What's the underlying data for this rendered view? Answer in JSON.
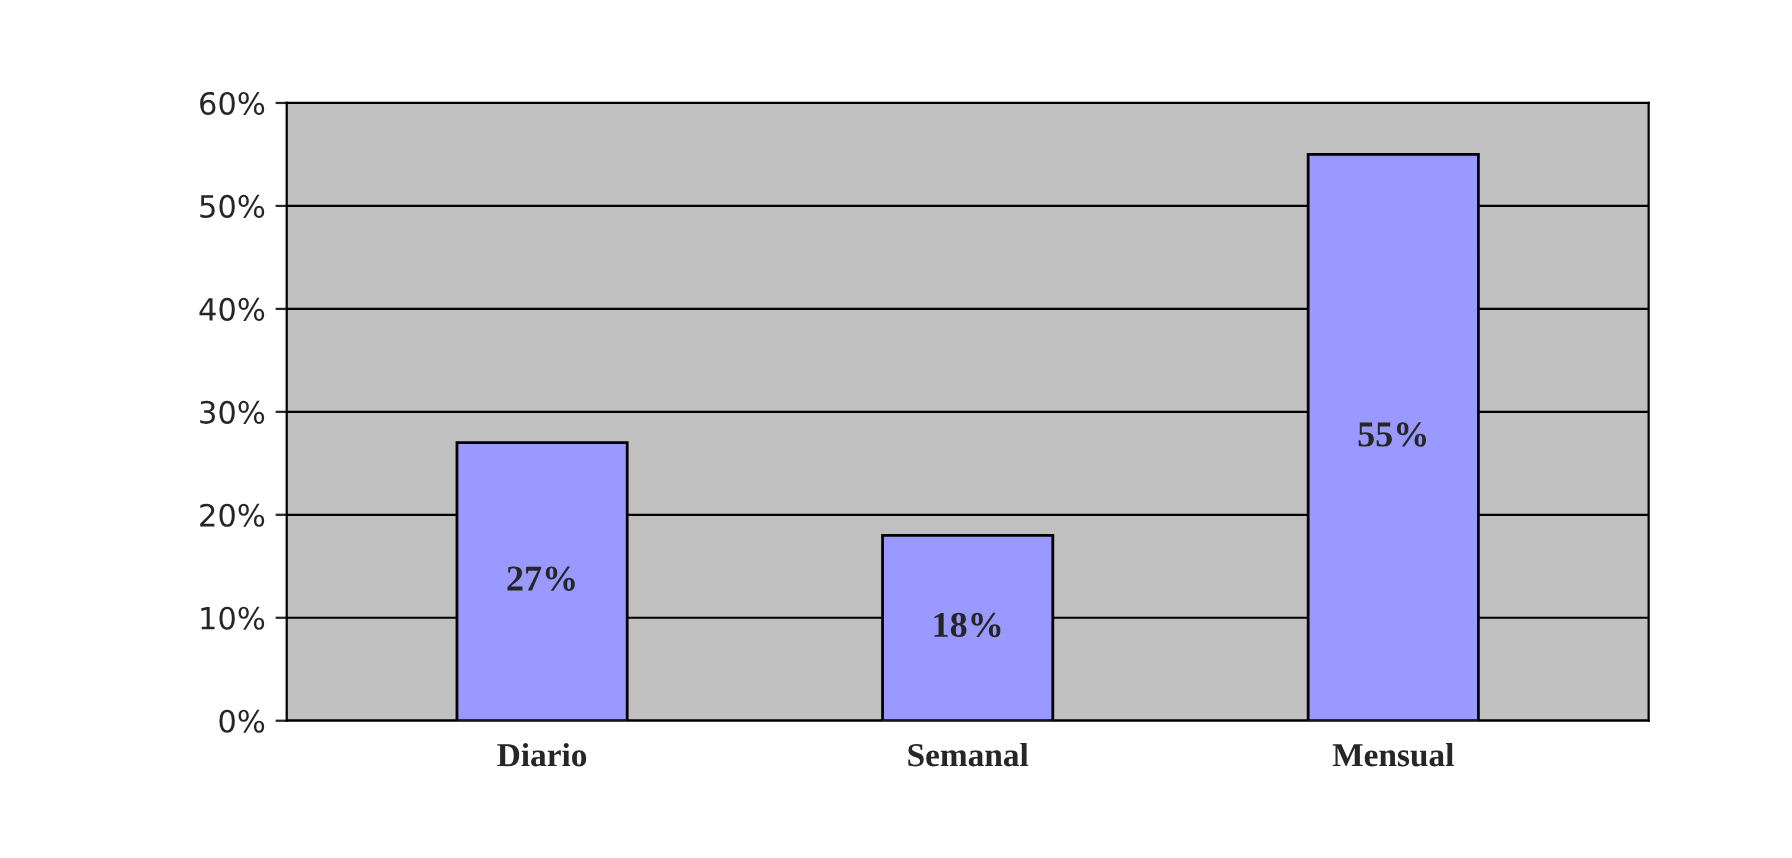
{
  "chart_data": {
    "type": "bar",
    "categories": [
      "Diario",
      "Semanal",
      "Mensual"
    ],
    "values": [
      27,
      18,
      55
    ],
    "value_labels": [
      "27%",
      "18%",
      "55%"
    ],
    "color": "#9999ff",
    "ylim": [
      0,
      60
    ],
    "yticks": [
      {
        "value": 0,
        "label": "0%"
      },
      {
        "value": 10,
        "label": "10%"
      },
      {
        "value": 20,
        "label": "20%"
      },
      {
        "value": 30,
        "label": "30%"
      },
      {
        "value": 40,
        "label": "40%"
      },
      {
        "value": 50,
        "label": "50%"
      },
      {
        "value": 60,
        "label": "60%"
      }
    ],
    "grid": "y"
  }
}
